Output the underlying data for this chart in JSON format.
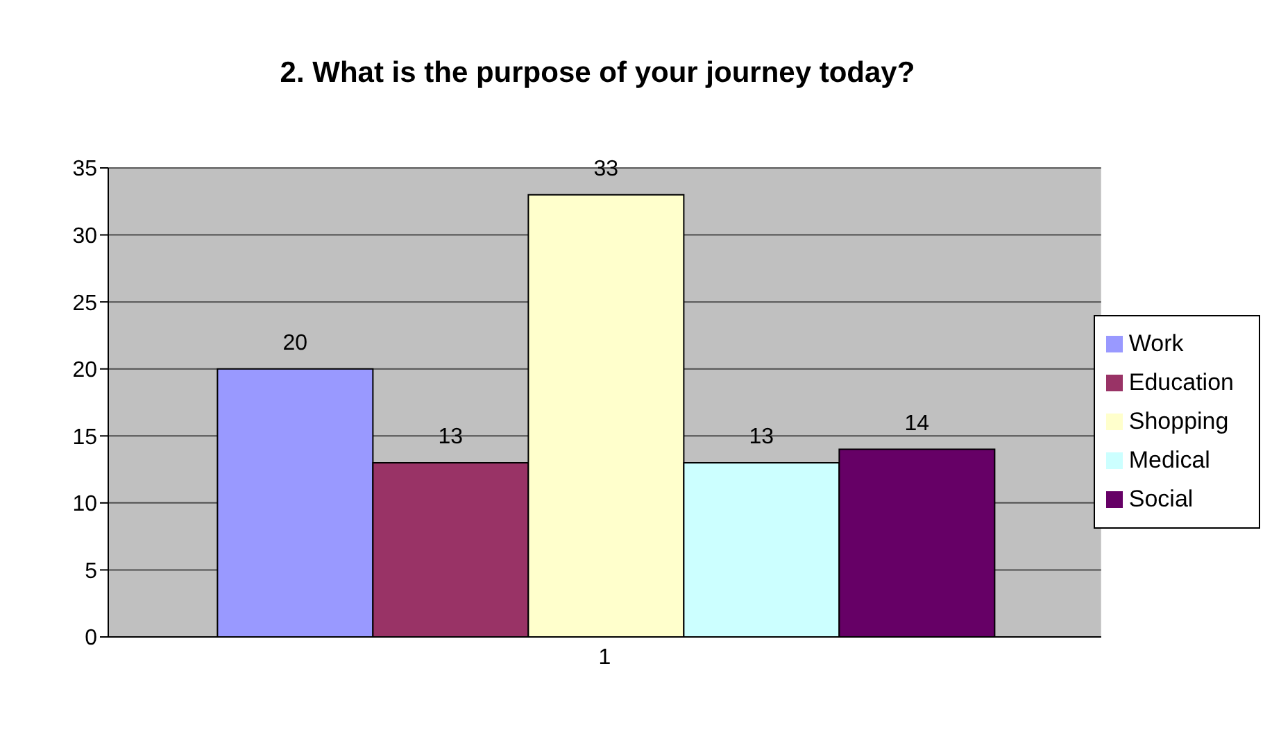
{
  "chart_data": {
    "type": "bar",
    "title": "2.  What is the purpose of your journey today?",
    "categories": [
      "1"
    ],
    "series": [
      {
        "name": "Work",
        "color": "#9999ff",
        "values": [
          20
        ]
      },
      {
        "name": "Education",
        "color": "#993366",
        "values": [
          13
        ]
      },
      {
        "name": "Shopping",
        "color": "#ffffcc",
        "values": [
          33
        ]
      },
      {
        "name": "Medical",
        "color": "#ccffff",
        "values": [
          13
        ]
      },
      {
        "name": "Social",
        "color": "#660066",
        "values": [
          14
        ]
      }
    ],
    "ylim": [
      0,
      35
    ],
    "yticks": [
      0,
      5,
      10,
      15,
      20,
      25,
      30,
      35
    ],
    "grid": "y",
    "legend": "right",
    "data_labels": true
  }
}
